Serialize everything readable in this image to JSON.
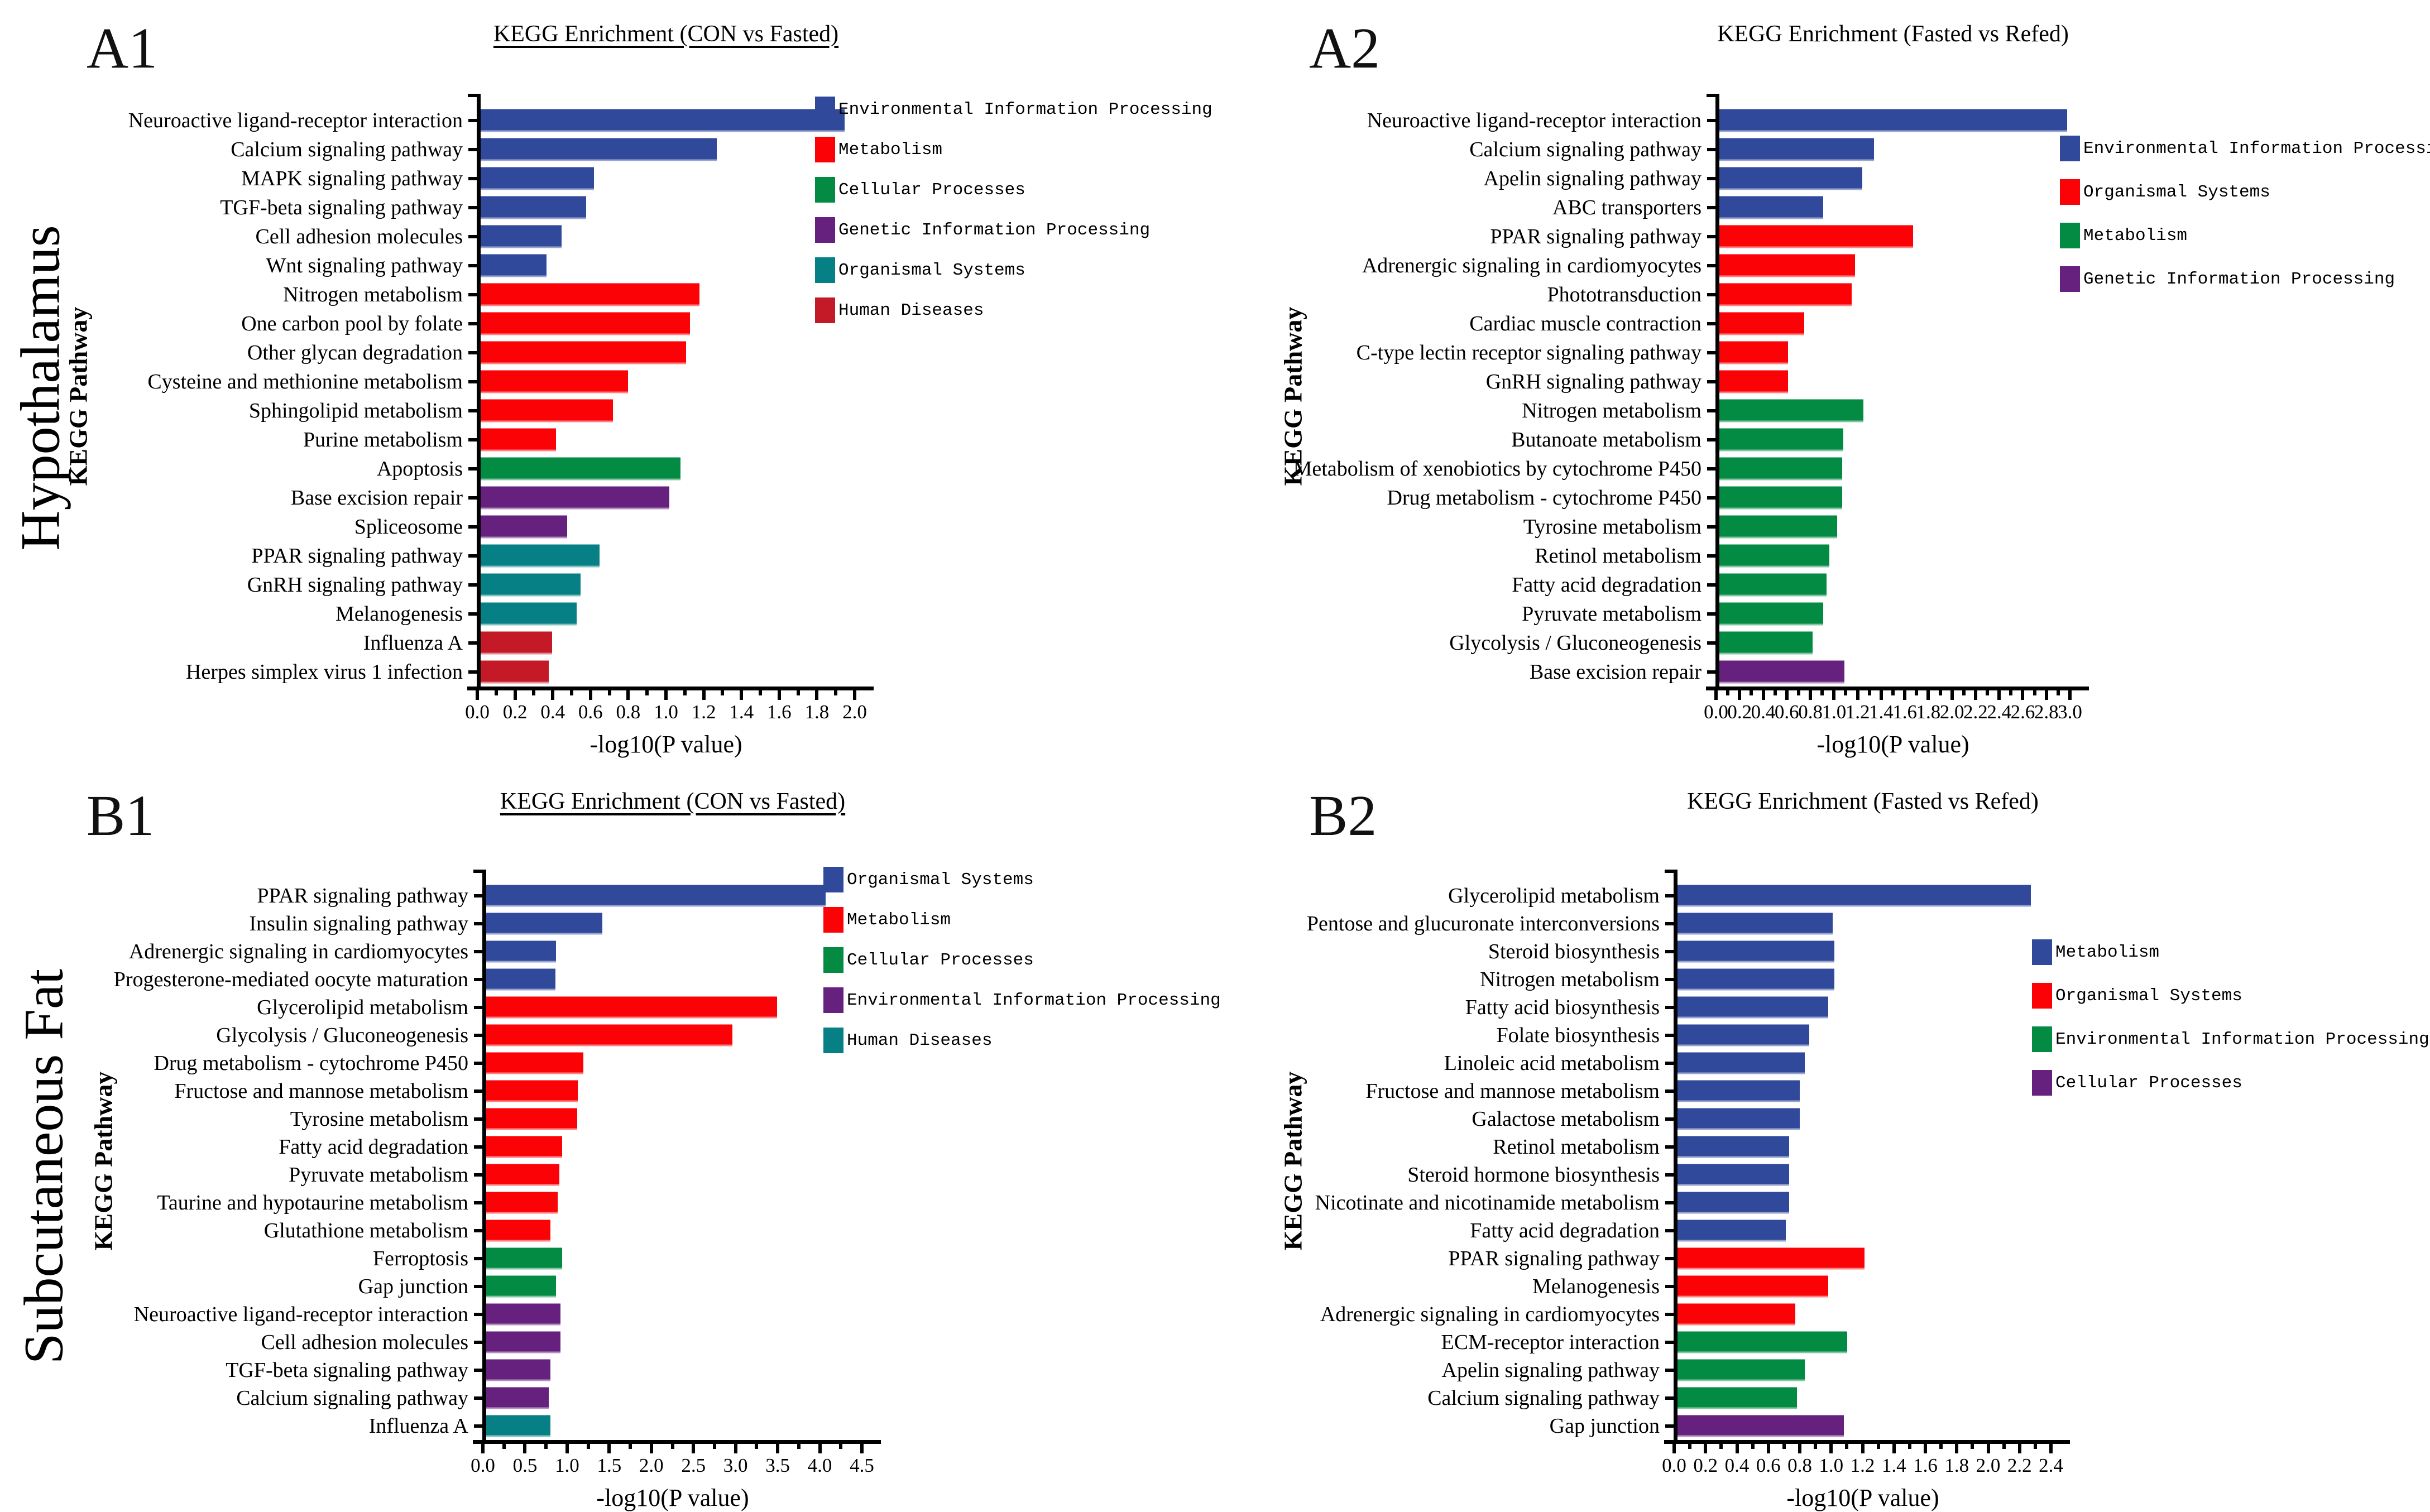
{
  "figure": {
    "row_labels": [
      "Hypothalamus",
      "Subcutaneous Fat"
    ],
    "x_axis_label": "-log10(P value)",
    "y_axis_label": "KEGG Pathway"
  },
  "palette": {
    "blue": "#31499B",
    "red": "#FB0207",
    "green": "#038A43",
    "purple": "#65217D",
    "teal": "#068084",
    "crimson": "#C41A28"
  },
  "chart_data": [
    {
      "type": "bar",
      "orientation": "horizontal",
      "panel_label": "A1",
      "tissue": "Hypothalamus",
      "title": "KEGG Enrichment (CON vs Fasted)",
      "title_underlined": true,
      "xlabel": "-log10(P value)",
      "ylabel": "KEGG Pathway",
      "xlim": [
        0,
        2.0
      ],
      "x_tick_labels": [
        "0.0",
        "0.2",
        "0.4",
        "0.6",
        "0.8",
        "1.0",
        "1.2",
        "1.4",
        "1.6",
        "1.8",
        "2.0"
      ],
      "grid": false,
      "legend_position": "right",
      "legend": [
        {
          "label": "Environmental Information Processing",
          "color": "blue"
        },
        {
          "label": "Metabolism",
          "color": "red"
        },
        {
          "label": "Cellular Processes",
          "color": "green"
        },
        {
          "label": "Genetic Information Processing",
          "color": "purple"
        },
        {
          "label": "Organismal Systems",
          "color": "teal"
        },
        {
          "label": "Human Diseases",
          "color": "crimson"
        }
      ],
      "bars": [
        {
          "pathway": "Neuroactive ligand-receptor interaction",
          "group": "Environmental Information Processing",
          "color": "blue",
          "value": 1.93
        },
        {
          "pathway": "Calcium signaling pathway",
          "group": "Environmental Information Processing",
          "color": "blue",
          "value": 1.25
        },
        {
          "pathway": "MAPK signaling pathway",
          "group": "Environmental Information Processing",
          "color": "blue",
          "value": 0.6
        },
        {
          "pathway": "TGF-beta signaling pathway",
          "group": "Environmental Information Processing",
          "color": "blue",
          "value": 0.56
        },
        {
          "pathway": "Cell adhesion molecules",
          "group": "Environmental Information Processing",
          "color": "blue",
          "value": 0.43
        },
        {
          "pathway": "Wnt signaling pathway",
          "group": "Environmental Information Processing",
          "color": "blue",
          "value": 0.35
        },
        {
          "pathway": "Nitrogen metabolism",
          "group": "Metabolism",
          "color": "red",
          "value": 1.16
        },
        {
          "pathway": "One carbon pool by folate",
          "group": "Metabolism",
          "color": "red",
          "value": 1.11
        },
        {
          "pathway": "Other glycan degradation",
          "group": "Metabolism",
          "color": "red",
          "value": 1.09
        },
        {
          "pathway": "Cysteine and methionine metabolism",
          "group": "Metabolism",
          "color": "red",
          "value": 0.78
        },
        {
          "pathway": "Sphingolipid metabolism",
          "group": "Metabolism",
          "color": "red",
          "value": 0.7
        },
        {
          "pathway": "Purine metabolism",
          "group": "Metabolism",
          "color": "red",
          "value": 0.4
        },
        {
          "pathway": "Apoptosis",
          "group": "Cellular Processes",
          "color": "green",
          "value": 1.06
        },
        {
          "pathway": "Base excision repair",
          "group": "Genetic Information Processing",
          "color": "purple",
          "value": 1.0
        },
        {
          "pathway": "Spliceosome",
          "group": "Genetic Information Processing",
          "color": "purple",
          "value": 0.46
        },
        {
          "pathway": "PPAR signaling pathway",
          "group": "Organismal Systems",
          "color": "teal",
          "value": 0.63
        },
        {
          "pathway": "GnRH signaling pathway",
          "group": "Organismal Systems",
          "color": "teal",
          "value": 0.53
        },
        {
          "pathway": "Melanogenesis",
          "group": "Organismal Systems",
          "color": "teal",
          "value": 0.51
        },
        {
          "pathway": "Influenza A",
          "group": "Human Diseases",
          "color": "crimson",
          "value": 0.38
        },
        {
          "pathway": "Herpes simplex virus 1 infection",
          "group": "Human Diseases",
          "color": "crimson",
          "value": 0.36
        }
      ]
    },
    {
      "type": "bar",
      "orientation": "horizontal",
      "panel_label": "A2",
      "tissue": "Hypothalamus",
      "title": "KEGG Enrichment (Fasted vs Refed)",
      "title_underlined": false,
      "xlabel": "-log10(P value)",
      "ylabel": "KEGG Pathway",
      "xlim": [
        0,
        3.0
      ],
      "x_tick_labels": [
        "0.0",
        "0.2",
        "0.4",
        "0.6",
        "0.8",
        "1.0",
        "1.2",
        "1.4",
        "1.6",
        "1.8",
        "2.0",
        "2.2",
        "2.4",
        "2.6",
        "2.8",
        "3.0"
      ],
      "grid": false,
      "legend_position": "right",
      "legend": [
        {
          "label": "Environmental Information Processing",
          "color": "blue"
        },
        {
          "label": "Organismal Systems",
          "color": "red"
        },
        {
          "label": "Metabolism",
          "color": "green"
        },
        {
          "label": "Genetic Information Processing",
          "color": "purple"
        }
      ],
      "bars": [
        {
          "pathway": "Neuroactive ligand-receptor interaction",
          "group": "Environmental Information Processing",
          "color": "blue",
          "value": 2.95
        },
        {
          "pathway": "Calcium signaling pathway",
          "group": "Environmental Information Processing",
          "color": "blue",
          "value": 1.31
        },
        {
          "pathway": "Apelin signaling pathway",
          "group": "Environmental Information Processing",
          "color": "blue",
          "value": 1.21
        },
        {
          "pathway": "ABC transporters",
          "group": "Environmental Information Processing",
          "color": "blue",
          "value": 0.88
        },
        {
          "pathway": "PPAR signaling pathway",
          "group": "Organismal Systems",
          "color": "red",
          "value": 1.64
        },
        {
          "pathway": "Adrenergic signaling in cardiomyocytes",
          "group": "Organismal Systems",
          "color": "red",
          "value": 1.15
        },
        {
          "pathway": "Phototransduction",
          "group": "Organismal Systems",
          "color": "red",
          "value": 1.12
        },
        {
          "pathway": "Cardiac muscle contraction",
          "group": "Organismal Systems",
          "color": "red",
          "value": 0.72
        },
        {
          "pathway": "C-type lectin receptor signaling pathway",
          "group": "Organismal Systems",
          "color": "red",
          "value": 0.58
        },
        {
          "pathway": "GnRH signaling pathway",
          "group": "Organismal Systems",
          "color": "red",
          "value": 0.58
        },
        {
          "pathway": "Nitrogen metabolism",
          "group": "Metabolism",
          "color": "green",
          "value": 1.22
        },
        {
          "pathway": "Butanoate metabolism",
          "group": "Metabolism",
          "color": "green",
          "value": 1.05
        },
        {
          "pathway": "Metabolism of xenobiotics by cytochrome P450",
          "group": "Metabolism",
          "color": "green",
          "value": 1.04
        },
        {
          "pathway": "Drug metabolism - cytochrome P450",
          "group": "Metabolism",
          "color": "green",
          "value": 1.04
        },
        {
          "pathway": "Tyrosine metabolism",
          "group": "Metabolism",
          "color": "green",
          "value": 1.0
        },
        {
          "pathway": "Retinol metabolism",
          "group": "Metabolism",
          "color": "green",
          "value": 0.93
        },
        {
          "pathway": "Fatty acid degradation",
          "group": "Metabolism",
          "color": "green",
          "value": 0.91
        },
        {
          "pathway": "Pyruvate metabolism",
          "group": "Metabolism",
          "color": "green",
          "value": 0.88
        },
        {
          "pathway": "Glycolysis / Gluconeogenesis",
          "group": "Metabolism",
          "color": "green",
          "value": 0.79
        },
        {
          "pathway": "Base excision repair",
          "group": "Genetic Information Processing",
          "color": "purple",
          "value": 1.06
        }
      ]
    },
    {
      "type": "bar",
      "orientation": "horizontal",
      "panel_label": "B1",
      "tissue": "Subcutaneous Fat",
      "title": "KEGG Enrichment (CON vs Fasted)",
      "title_underlined": true,
      "xlabel": "-log10(P value)",
      "ylabel": "KEGG Pathway",
      "xlim": [
        0,
        4.5
      ],
      "x_tick_labels": [
        "0.0",
        "0.5",
        "1.0",
        "1.5",
        "2.0",
        "2.5",
        "3.0",
        "3.5",
        "4.0",
        "4.5"
      ],
      "grid": false,
      "legend_position": "right",
      "legend": [
        {
          "label": "Organismal Systems",
          "color": "blue"
        },
        {
          "label": "Metabolism",
          "color": "red"
        },
        {
          "label": "Cellular Processes",
          "color": "green"
        },
        {
          "label": "Environmental Information Processing",
          "color": "purple"
        },
        {
          "label": "Human Diseases",
          "color": "teal"
        }
      ],
      "bars": [
        {
          "pathway": "PPAR signaling pathway",
          "group": "Organismal Systems",
          "color": "blue",
          "value": 4.03
        },
        {
          "pathway": "Insulin signaling pathway",
          "group": "Organismal Systems",
          "color": "blue",
          "value": 1.38
        },
        {
          "pathway": "Adrenergic signaling in cardiomyocytes",
          "group": "Organismal Systems",
          "color": "blue",
          "value": 0.83
        },
        {
          "pathway": "Progesterone-mediated oocyte maturation",
          "group": "Organismal Systems",
          "color": "blue",
          "value": 0.82
        },
        {
          "pathway": "Glycerolipid metabolism",
          "group": "Metabolism",
          "color": "red",
          "value": 3.45
        },
        {
          "pathway": "Glycolysis / Gluconeogenesis",
          "group": "Metabolism",
          "color": "red",
          "value": 2.92
        },
        {
          "pathway": "Drug metabolism - cytochrome P450",
          "group": "Metabolism",
          "color": "red",
          "value": 1.15
        },
        {
          "pathway": "Fructose and mannose metabolism",
          "group": "Metabolism",
          "color": "red",
          "value": 1.09
        },
        {
          "pathway": "Tyrosine metabolism",
          "group": "Metabolism",
          "color": "red",
          "value": 1.08
        },
        {
          "pathway": "Fatty acid degradation",
          "group": "Metabolism",
          "color": "red",
          "value": 0.9
        },
        {
          "pathway": "Pyruvate metabolism",
          "group": "Metabolism",
          "color": "red",
          "value": 0.87
        },
        {
          "pathway": "Taurine and hypotaurine metabolism",
          "group": "Metabolism",
          "color": "red",
          "value": 0.85
        },
        {
          "pathway": "Glutathione metabolism",
          "group": "Metabolism",
          "color": "red",
          "value": 0.76
        },
        {
          "pathway": "Ferroptosis",
          "group": "Cellular Processes",
          "color": "green",
          "value": 0.9
        },
        {
          "pathway": "Gap junction",
          "group": "Cellular Processes",
          "color": "green",
          "value": 0.83
        },
        {
          "pathway": "Neuroactive ligand-receptor interaction",
          "group": "Environmental Information Processing",
          "color": "purple",
          "value": 0.88
        },
        {
          "pathway": "Cell adhesion molecules",
          "group": "Environmental Information Processing",
          "color": "purple",
          "value": 0.88
        },
        {
          "pathway": "TGF-beta signaling pathway",
          "group": "Environmental Information Processing",
          "color": "purple",
          "value": 0.76
        },
        {
          "pathway": "Calcium signaling pathway",
          "group": "Environmental Information Processing",
          "color": "purple",
          "value": 0.74
        },
        {
          "pathway": "Influenza A",
          "group": "Human Diseases",
          "color": "teal",
          "value": 0.76
        }
      ]
    },
    {
      "type": "bar",
      "orientation": "horizontal",
      "panel_label": "B2",
      "tissue": "Subcutaneous Fat",
      "title": "KEGG Enrichment (Fasted vs Refed)",
      "title_underlined": false,
      "xlabel": "-log10(P value)",
      "ylabel": "KEGG Pathway",
      "xlim": [
        0,
        2.4
      ],
      "x_tick_labels": [
        "0.0",
        "0.2",
        "0.4",
        "0.6",
        "0.8",
        "1.0",
        "1.2",
        "1.4",
        "1.6",
        "1.8",
        "2.0",
        "2.2",
        "2.4"
      ],
      "grid": false,
      "legend_position": "right",
      "legend": [
        {
          "label": "Metabolism",
          "color": "blue"
        },
        {
          "label": "Organismal Systems",
          "color": "red"
        },
        {
          "label": "Environmental Information Processing",
          "color": "green"
        },
        {
          "label": "Cellular Processes",
          "color": "purple"
        }
      ],
      "bars": [
        {
          "pathway": "Glycerolipid metabolism",
          "group": "Metabolism",
          "color": "blue",
          "value": 2.25
        },
        {
          "pathway": "Pentose and glucuronate interconversions",
          "group": "Metabolism",
          "color": "blue",
          "value": 0.99
        },
        {
          "pathway": "Steroid biosynthesis",
          "group": "Metabolism",
          "color": "blue",
          "value": 1.0
        },
        {
          "pathway": "Nitrogen metabolism",
          "group": "Metabolism",
          "color": "blue",
          "value": 1.0
        },
        {
          "pathway": "Fatty acid biosynthesis",
          "group": "Metabolism",
          "color": "blue",
          "value": 0.96
        },
        {
          "pathway": "Folate biosynthesis",
          "group": "Metabolism",
          "color": "blue",
          "value": 0.84
        },
        {
          "pathway": "Linoleic acid metabolism",
          "group": "Metabolism",
          "color": "blue",
          "value": 0.81
        },
        {
          "pathway": "Fructose and mannose metabolism",
          "group": "Metabolism",
          "color": "blue",
          "value": 0.78
        },
        {
          "pathway": "Galactose metabolism",
          "group": "Metabolism",
          "color": "blue",
          "value": 0.78
        },
        {
          "pathway": "Retinol metabolism",
          "group": "Metabolism",
          "color": "blue",
          "value": 0.71
        },
        {
          "pathway": "Steroid hormone biosynthesis",
          "group": "Metabolism",
          "color": "blue",
          "value": 0.71
        },
        {
          "pathway": "Nicotinate and nicotinamide metabolism",
          "group": "Metabolism",
          "color": "blue",
          "value": 0.71
        },
        {
          "pathway": "Fatty acid degradation",
          "group": "Metabolism",
          "color": "blue",
          "value": 0.69
        },
        {
          "pathway": "PPAR signaling pathway",
          "group": "Organismal Systems",
          "color": "red",
          "value": 1.19
        },
        {
          "pathway": "Melanogenesis",
          "group": "Organismal Systems",
          "color": "red",
          "value": 0.96
        },
        {
          "pathway": "Adrenergic signaling in cardiomyocytes",
          "group": "Organismal Systems",
          "color": "red",
          "value": 0.75
        },
        {
          "pathway": "ECM-receptor interaction",
          "group": "Environmental Information Processing",
          "color": "green",
          "value": 1.08
        },
        {
          "pathway": "Apelin signaling pathway",
          "group": "Environmental Information Processing",
          "color": "green",
          "value": 0.81
        },
        {
          "pathway": "Calcium signaling pathway",
          "group": "Environmental Information Processing",
          "color": "green",
          "value": 0.76
        },
        {
          "pathway": "Gap junction",
          "group": "Cellular Processes",
          "color": "purple",
          "value": 1.06
        }
      ]
    }
  ]
}
